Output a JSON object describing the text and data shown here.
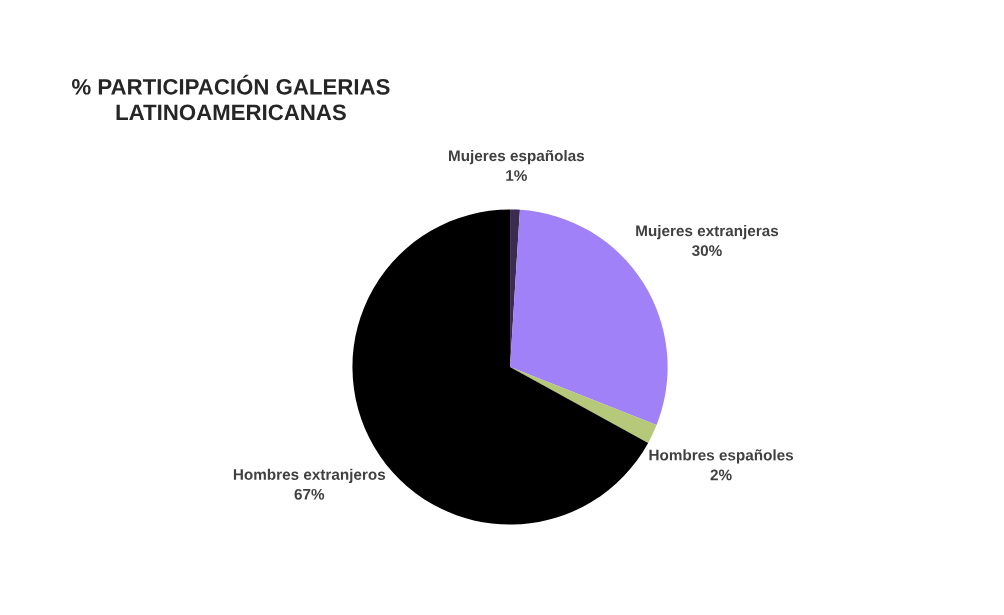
{
  "chart_data": {
    "type": "pie",
    "title": "% PARTICIPACIÓN GALERIAS\nLATINOAMERICANAS",
    "categories": [
      "Mujeres españolas",
      "Mujeres extranjeras",
      "Hombres españoles",
      "Hombres extranjeros"
    ],
    "values": [
      1,
      30,
      2,
      67
    ],
    "colors": [
      "#3b2b4f",
      "#a081f7",
      "#b6c87a",
      "#000000"
    ],
    "value_labels": [
      "1%",
      "30%",
      "2%",
      "67%"
    ]
  }
}
